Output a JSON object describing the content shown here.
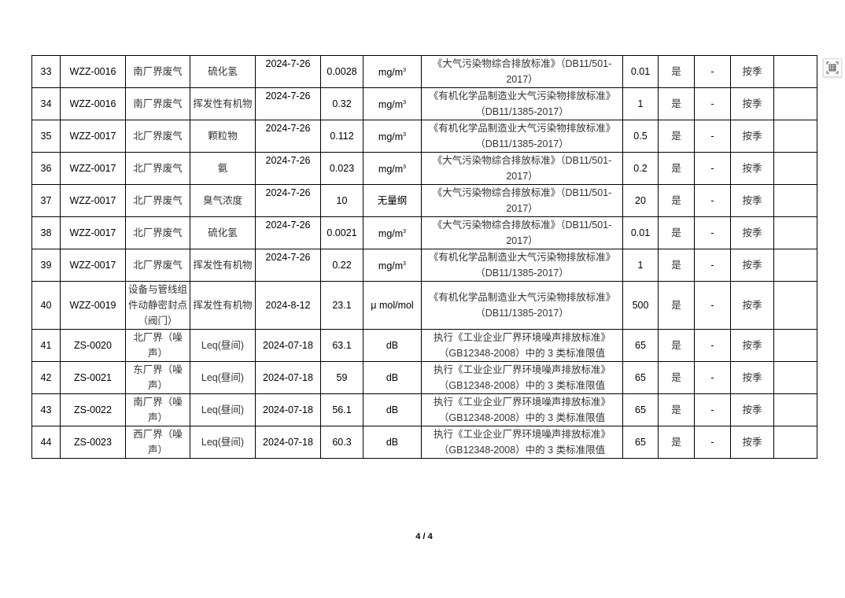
{
  "rows": [
    {
      "no": "33",
      "code": "WZZ-0016",
      "location": "南厂界废气",
      "item": "硫化氢",
      "date": "2024-7-26",
      "value": "0.0028",
      "unit": "mg/m",
      "unit_sup": "3",
      "standard": "《大气污染物综合排放标准》（DB11/501-2017）",
      "limit": "0.01",
      "ok": "是",
      "extra": "-",
      "freq": "按季",
      "note": ""
    },
    {
      "no": "34",
      "code": "WZZ-0016",
      "location": "南厂界废气",
      "item": "挥发性有机物",
      "date": "2024-7-26",
      "value": "0.32",
      "unit": "mg/m",
      "unit_sup": "3",
      "standard": "《有机化学品制造业大气污染物排放标准》（DB11/1385-2017）",
      "limit": "1",
      "ok": "是",
      "extra": "-",
      "freq": "按季",
      "note": ""
    },
    {
      "no": "35",
      "code": "WZZ-0017",
      "location": "北厂界废气",
      "item": "颗粒物",
      "date": "2024-7-26",
      "value": "0.112",
      "unit": "mg/m",
      "unit_sup": "3",
      "standard": "《有机化学品制造业大气污染物排放标准》（DB11/1385-2017）",
      "limit": "0.5",
      "ok": "是",
      "extra": "-",
      "freq": "按季",
      "note": ""
    },
    {
      "no": "36",
      "code": "WZZ-0017",
      "location": "北厂界废气",
      "item": "氨",
      "date": "2024-7-26",
      "value": "0.023",
      "unit": "mg/m",
      "unit_sup": "3",
      "standard": "《大气污染物综合排放标准》（DB11/501-2017）",
      "limit": "0.2",
      "ok": "是",
      "extra": "-",
      "freq": "按季",
      "note": ""
    },
    {
      "no": "37",
      "code": "WZZ-0017",
      "location": "北厂界废气",
      "item": "臭气浓度",
      "date": "2024-7-26",
      "value": "10",
      "unit": "无量纲",
      "unit_sup": "",
      "standard": "《大气污染物综合排放标准》（DB11/501-2017）",
      "limit": "20",
      "ok": "是",
      "extra": "-",
      "freq": "按季",
      "note": ""
    },
    {
      "no": "38",
      "code": "WZZ-0017",
      "location": "北厂界废气",
      "item": "硫化氢",
      "date": "2024-7-26",
      "value": "0.0021",
      "unit": "mg/m",
      "unit_sup": "3",
      "standard": "《大气污染物综合排放标准》（DB11/501-2017）",
      "limit": "0.01",
      "ok": "是",
      "extra": "-",
      "freq": "按季",
      "note": ""
    },
    {
      "no": "39",
      "code": "WZZ-0017",
      "location": "北厂界废气",
      "item": "挥发性有机物",
      "date": "2024-7-26",
      "value": "0.22",
      "unit": "mg/m",
      "unit_sup": "3",
      "standard": "《有机化学品制造业大气污染物排放标准》（DB11/1385-2017）",
      "limit": "1",
      "ok": "是",
      "extra": "-",
      "freq": "按季",
      "note": ""
    },
    {
      "no": "40",
      "code": "WZZ-0019",
      "location": "设备与管线组件动静密封点（阀门）",
      "item": "挥发性有机物",
      "date": "2024-8-12",
      "value": "23.1",
      "unit": "μ mol/mol",
      "unit_sup": "",
      "standard": "《有机化学品制造业大气污染物排放标准》（DB11/1385-2017）",
      "limit": "500",
      "ok": "是",
      "extra": "-",
      "freq": "按季",
      "note": ""
    },
    {
      "no": "41",
      "code": "ZS-0020",
      "location": "北厂界（噪声）",
      "item": "Leq(昼间)",
      "date": "2024-07-18",
      "value": "63.1",
      "unit": "dB",
      "unit_sup": "",
      "standard": "执行《工业企业厂界环境噪声排放标准》（GB12348-2008）中的 3 类标准限值",
      "limit": "65",
      "ok": "是",
      "extra": "-",
      "freq": "按季",
      "note": ""
    },
    {
      "no": "42",
      "code": "ZS-0021",
      "location": "东厂界（噪声）",
      "item": "Leq(昼间)",
      "date": "2024-07-18",
      "value": "59",
      "unit": "dB",
      "unit_sup": "",
      "standard": "执行《工业企业厂界环境噪声排放标准》（GB12348-2008）中的 3 类标准限值",
      "limit": "65",
      "ok": "是",
      "extra": "-",
      "freq": "按季",
      "note": ""
    },
    {
      "no": "43",
      "code": "ZS-0022",
      "location": "南厂界（噪声）",
      "item": "Leq(昼间)",
      "date": "2024-07-18",
      "value": "56.1",
      "unit": "dB",
      "unit_sup": "",
      "standard": "执行《工业企业厂界环境噪声排放标准》（GB12348-2008）中的 3 类标准限值",
      "limit": "65",
      "ok": "是",
      "extra": "-",
      "freq": "按季",
      "note": ""
    },
    {
      "no": "44",
      "code": "ZS-0023",
      "location": "西厂界（噪声）",
      "item": "Leq(昼间)",
      "date": "2024-07-18",
      "value": "60.3",
      "unit": "dB",
      "unit_sup": "",
      "standard": "执行《工业企业厂界环境噪声排放标准》（GB12348-2008）中的 3 类标准限值",
      "limit": "65",
      "ok": "是",
      "extra": "-",
      "freq": "按季",
      "note": ""
    }
  ],
  "footer": {
    "page": "4 / 4"
  },
  "toolbar": {
    "fit_icon": "fit-page-icon"
  }
}
